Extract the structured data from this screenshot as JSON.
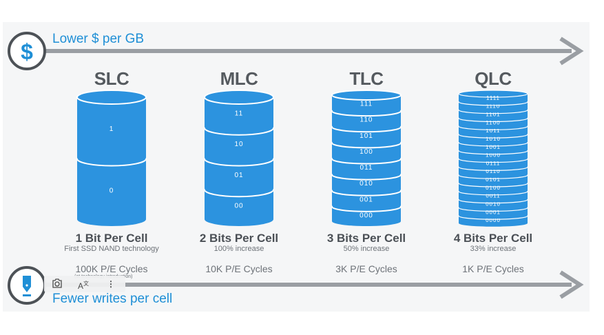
{
  "top_arrow": {
    "label": "Lower $ per GB",
    "icon": "dollar-icon",
    "symbol": "$"
  },
  "bottom_arrow": {
    "label": "Fewer writes per cell",
    "icon": "pen-nib-icon"
  },
  "colors": {
    "accent": "#1f8fd6",
    "disk": "#2c93df",
    "disk_edge": "#ffffff",
    "arrow": "#9a9ea3",
    "text": "#555a5f"
  },
  "columns": [
    {
      "name": "SLC",
      "bits_label": "1 Bit Per Cell",
      "note": "First SSD NAND technology",
      "cycles": "100K P/E Cycles",
      "cycles_note": "(at technology introduction)",
      "levels": [
        "1",
        "0"
      ]
    },
    {
      "name": "MLC",
      "bits_label": "2 Bits Per Cell",
      "note": "100% increase",
      "cycles": "10K P/E Cycles",
      "levels": [
        "11",
        "10",
        "01",
        "00"
      ]
    },
    {
      "name": "TLC",
      "bits_label": "3 Bits Per Cell",
      "note": "50% increase",
      "cycles": "3K P/E Cycles",
      "levels": [
        "111",
        "110",
        "101",
        "100",
        "011",
        "010",
        "001",
        "000"
      ]
    },
    {
      "name": "QLC",
      "bits_label": "4 Bits Per Cell",
      "note": "33% increase",
      "cycles": "1K P/E Cycles",
      "levels": [
        "1111",
        "1110",
        "1101",
        "1100",
        "1011",
        "1010",
        "1001",
        "1000",
        "0111",
        "0110",
        "0101",
        "0100",
        "0011",
        "0010",
        "0001",
        "0000"
      ]
    }
  ],
  "overlay_toolbar": {
    "search_icon": "image-search-icon",
    "translate_icon": "translate-icon",
    "more_icon": "more-vertical-icon",
    "translate_text": "A"
  }
}
